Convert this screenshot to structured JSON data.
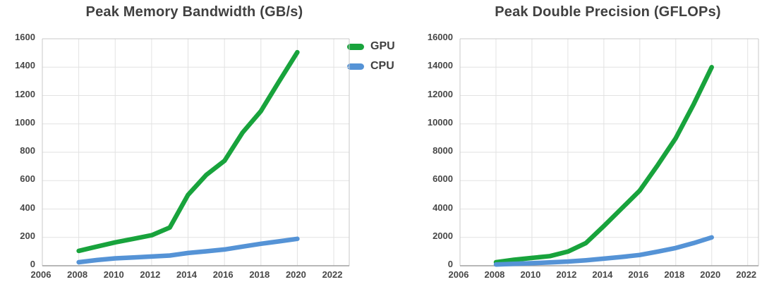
{
  "page": {
    "background": "#ffffff",
    "text_color": "#404040"
  },
  "legend": {
    "position": "top-center-between-charts",
    "items": [
      {
        "label": "GPU",
        "color": "#18a33c"
      },
      {
        "label": "CPU",
        "color": "#5593d6"
      }
    ]
  },
  "colors": {
    "gpu_line": "#18a33c",
    "cpu_line": "#5593d6",
    "gridline": "#e2e2e2",
    "plot_border": "#c9c9c9",
    "axis_line": "#a0a0a0",
    "label_text": "#474747"
  },
  "chart_data": [
    {
      "type": "line",
      "title": "Peak Memory Bandwidth (GB/s)",
      "xlabel": "",
      "ylabel": "",
      "grid": true,
      "legend_position": "right-of-chart-top",
      "x_ticks": [
        2006,
        2008,
        2010,
        2012,
        2014,
        2016,
        2018,
        2020,
        2022
      ],
      "y_ticks": [
        0,
        200,
        400,
        600,
        800,
        1000,
        1200,
        1400,
        1600
      ],
      "xlim": [
        2006,
        2022.85
      ],
      "ylim": [
        0,
        1600
      ],
      "series": [
        {
          "name": "GPU",
          "color": "#18a33c",
          "x": [
            2008,
            2009,
            2010,
            2011,
            2012,
            2013,
            2014,
            2015,
            2016,
            2017,
            2018,
            2019,
            2020
          ],
          "values": [
            105,
            135,
            165,
            190,
            215,
            270,
            500,
            640,
            740,
            940,
            1090,
            1300,
            1505
          ]
        },
        {
          "name": "CPU",
          "color": "#5593d6",
          "x": [
            2008,
            2009,
            2010,
            2011,
            2012,
            2013,
            2014,
            2015,
            2016,
            2017,
            2018,
            2019,
            2020
          ],
          "values": [
            25,
            40,
            52,
            58,
            65,
            72,
            90,
            102,
            115,
            135,
            155,
            172,
            190
          ]
        }
      ]
    },
    {
      "type": "line",
      "title": "Peak Double Precision (GFLOPs)",
      "xlabel": "",
      "ylabel": "",
      "grid": true,
      "x_ticks": [
        2006,
        2008,
        2010,
        2012,
        2014,
        2016,
        2018,
        2020,
        2022
      ],
      "y_ticks": [
        0,
        2000,
        4000,
        6000,
        8000,
        10000,
        12000,
        14000,
        16000
      ],
      "xlim": [
        2006,
        2022.6
      ],
      "ylim": [
        0,
        16000
      ],
      "series": [
        {
          "name": "GPU",
          "color": "#18a33c",
          "x": [
            2008,
            2009,
            2010,
            2011,
            2012,
            2013,
            2014,
            2015,
            2016,
            2017,
            2018,
            2019,
            2020
          ],
          "values": [
            250,
            420,
            550,
            680,
            1000,
            1600,
            2800,
            4050,
            5300,
            7100,
            9000,
            11400,
            14000
          ]
        },
        {
          "name": "CPU",
          "color": "#5593d6",
          "x": [
            2008,
            2009,
            2010,
            2011,
            2012,
            2013,
            2014,
            2015,
            2016,
            2017,
            2018,
            2019,
            2020
          ],
          "values": [
            90,
            140,
            180,
            240,
            300,
            390,
            500,
            620,
            760,
            1000,
            1250,
            1600,
            2000
          ]
        }
      ]
    }
  ]
}
